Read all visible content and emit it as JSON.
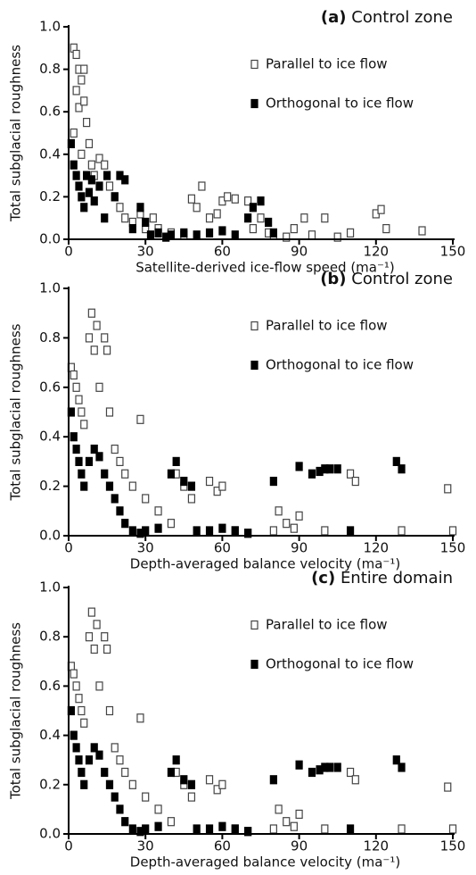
{
  "chart_data": [
    {
      "type": "scatter",
      "panel_label": "(a)",
      "title": "Control zone",
      "xlabel": "Satellite-derived ice-flow speed (ma⁻¹)",
      "ylabel": "Total subglacial roughness",
      "xlim": [
        0,
        150
      ],
      "xticks": [
        0,
        30,
        60,
        90,
        120,
        150
      ],
      "ylim": [
        0,
        1
      ],
      "yticks": [
        {
          "value": 0,
          "label": "0.0"
        },
        0.2,
        0.4,
        0.6,
        0.8,
        {
          "value": 1,
          "label": "1.0"
        }
      ],
      "series": [
        {
          "name": "Parallel to ice flow",
          "color": "#444444",
          "filled": false,
          "x": [
            2,
            3,
            4,
            5,
            6,
            3,
            4,
            6,
            7,
            8,
            2,
            5,
            9,
            10,
            12,
            14,
            16,
            18,
            20,
            22,
            25,
            28,
            30,
            33,
            35,
            40,
            45,
            48,
            50,
            52,
            55,
            58,
            60,
            62,
            65,
            70,
            72,
            75,
            78,
            80,
            85,
            88,
            92,
            95,
            100,
            105,
            110,
            120,
            122,
            124,
            138
          ],
          "values": [
            0.9,
            0.87,
            0.8,
            0.75,
            0.8,
            0.7,
            0.62,
            0.65,
            0.55,
            0.45,
            0.5,
            0.4,
            0.35,
            0.3,
            0.38,
            0.35,
            0.25,
            0.2,
            0.15,
            0.1,
            0.08,
            0.12,
            0.05,
            0.1,
            0.05,
            0.03,
            0.02,
            0.19,
            0.15,
            0.25,
            0.1,
            0.12,
            0.18,
            0.2,
            0.19,
            0.18,
            0.05,
            0.1,
            0.03,
            0.02,
            0.01,
            0.05,
            0.1,
            0.02,
            0.1,
            0.01,
            0.03,
            0.12,
            0.14,
            0.05,
            0.04
          ]
        },
        {
          "name": "Orthogonal to ice flow",
          "color": "#000000",
          "filled": true,
          "x": [
            1,
            2,
            3,
            4,
            5,
            6,
            7,
            8,
            9,
            10,
            12,
            14,
            15,
            18,
            20,
            22,
            25,
            28,
            30,
            32,
            35,
            38,
            40,
            45,
            50,
            55,
            60,
            65,
            70,
            72,
            75,
            78,
            80
          ],
          "values": [
            0.45,
            0.35,
            0.3,
            0.25,
            0.2,
            0.15,
            0.3,
            0.22,
            0.28,
            0.18,
            0.25,
            0.1,
            0.3,
            0.2,
            0.3,
            0.28,
            0.05,
            0.15,
            0.08,
            0.02,
            0.03,
            0.01,
            0.02,
            0.03,
            0.02,
            0.03,
            0.04,
            0.02,
            0.1,
            0.15,
            0.18,
            0.08,
            0.03
          ]
        }
      ]
    },
    {
      "type": "scatter",
      "panel_label": "(b)",
      "title": "Control zone",
      "xlabel": "Depth-averaged balance velocity (ma⁻¹)",
      "ylabel": "Total subglacial roughness",
      "xlim": [
        0,
        150
      ],
      "xticks": [
        0,
        30,
        60,
        90,
        120,
        150
      ],
      "ylim": [
        0,
        1
      ],
      "yticks": [
        {
          "value": 0,
          "label": "0.0"
        },
        0.2,
        0.4,
        0.6,
        0.8,
        {
          "value": 1,
          "label": "1.0"
        }
      ],
      "series": [
        {
          "name": "Parallel to ice flow",
          "color": "#444444",
          "filled": false,
          "x": [
            1,
            2,
            3,
            4,
            5,
            6,
            8,
            9,
            10,
            11,
            12,
            14,
            15,
            16,
            18,
            20,
            22,
            25,
            28,
            30,
            35,
            40,
            42,
            45,
            48,
            55,
            58,
            60,
            65,
            70,
            80,
            82,
            85,
            88,
            90,
            100,
            110,
            112,
            130,
            148,
            150
          ],
          "values": [
            0.68,
            0.65,
            0.6,
            0.55,
            0.5,
            0.45,
            0.8,
            0.9,
            0.75,
            0.85,
            0.6,
            0.8,
            0.75,
            0.5,
            0.35,
            0.3,
            0.25,
            0.2,
            0.47,
            0.15,
            0.1,
            0.05,
            0.25,
            0.2,
            0.15,
            0.22,
            0.18,
            0.2,
            0.02,
            0.01,
            0.02,
            0.1,
            0.05,
            0.03,
            0.08,
            0.02,
            0.25,
            0.22,
            0.02,
            0.19,
            0.02
          ]
        },
        {
          "name": "Orthogonal to ice flow",
          "color": "#000000",
          "filled": true,
          "x": [
            1,
            2,
            3,
            4,
            5,
            6,
            8,
            10,
            12,
            14,
            16,
            18,
            20,
            22,
            25,
            28,
            30,
            35,
            40,
            42,
            45,
            48,
            50,
            55,
            60,
            65,
            70,
            80,
            90,
            95,
            98,
            100,
            102,
            105,
            110,
            128,
            130
          ],
          "values": [
            0.5,
            0.4,
            0.35,
            0.3,
            0.25,
            0.2,
            0.3,
            0.35,
            0.32,
            0.25,
            0.2,
            0.15,
            0.1,
            0.05,
            0.02,
            0.01,
            0.02,
            0.03,
            0.25,
            0.3,
            0.22,
            0.2,
            0.02,
            0.02,
            0.03,
            0.02,
            0.01,
            0.22,
            0.28,
            0.25,
            0.26,
            0.27,
            0.27,
            0.27,
            0.02,
            0.3,
            0.27
          ]
        }
      ]
    },
    {
      "type": "scatter",
      "panel_label": "(c)",
      "title": "Entire domain",
      "xlabel": "Depth-averaged balance velocity (ma⁻¹)",
      "ylabel": "Total subglacial roughness",
      "xlim": [
        0,
        150
      ],
      "xticks": [
        0,
        30,
        60,
        90,
        120,
        150
      ],
      "ylim": [
        0,
        1
      ],
      "yticks": [
        {
          "value": 0,
          "label": "0.0"
        },
        0.2,
        0.4,
        0.6,
        0.8,
        {
          "value": 1,
          "label": "1.0"
        }
      ],
      "series": [
        {
          "name": "Parallel to ice flow",
          "color": "#444444",
          "filled": false,
          "x": [
            1,
            2,
            3,
            4,
            5,
            6,
            8,
            9,
            10,
            11,
            12,
            14,
            15,
            16,
            18,
            20,
            22,
            25,
            28,
            30,
            35,
            40,
            42,
            45,
            48,
            55,
            58,
            60,
            65,
            70,
            80,
            82,
            85,
            88,
            90,
            100,
            110,
            112,
            130,
            148,
            150
          ],
          "values": [
            0.68,
            0.65,
            0.6,
            0.55,
            0.5,
            0.45,
            0.8,
            0.9,
            0.75,
            0.85,
            0.6,
            0.8,
            0.75,
            0.5,
            0.35,
            0.3,
            0.25,
            0.2,
            0.47,
            0.15,
            0.1,
            0.05,
            0.25,
            0.2,
            0.15,
            0.22,
            0.18,
            0.2,
            0.02,
            0.01,
            0.02,
            0.1,
            0.05,
            0.03,
            0.08,
            0.02,
            0.25,
            0.22,
            0.02,
            0.19,
            0.02
          ]
        },
        {
          "name": "Orthogonal to ice flow",
          "color": "#000000",
          "filled": true,
          "x": [
            1,
            2,
            3,
            4,
            5,
            6,
            8,
            10,
            12,
            14,
            16,
            18,
            20,
            22,
            25,
            28,
            30,
            35,
            40,
            42,
            45,
            48,
            50,
            55,
            60,
            65,
            70,
            80,
            90,
            95,
            98,
            100,
            102,
            105,
            110,
            128,
            130
          ],
          "values": [
            0.5,
            0.4,
            0.35,
            0.3,
            0.25,
            0.2,
            0.3,
            0.35,
            0.32,
            0.25,
            0.2,
            0.15,
            0.1,
            0.05,
            0.02,
            0.01,
            0.02,
            0.03,
            0.25,
            0.3,
            0.22,
            0.2,
            0.02,
            0.02,
            0.03,
            0.02,
            0.01,
            0.22,
            0.28,
            0.25,
            0.26,
            0.27,
            0.27,
            0.27,
            0.02,
            0.3,
            0.27
          ]
        }
      ]
    }
  ]
}
